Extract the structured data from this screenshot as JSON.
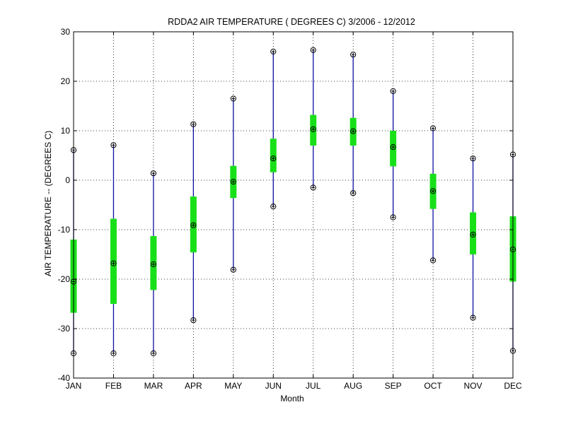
{
  "chart_data": {
    "type": "box",
    "title": "RDDA2  AIR TEMPERATURE ( DEGREES C) 3/2006 - 12/2012",
    "xlabel": "Month",
    "ylabel": "AIR TEMPERATURE -- (DEGREES C)",
    "ylim": [
      -40,
      30
    ],
    "yticks": [
      -40,
      -30,
      -20,
      -10,
      0,
      10,
      20,
      30
    ],
    "grid": true,
    "categories": [
      "JAN",
      "FEB",
      "MAR",
      "APR",
      "MAY",
      "JUN",
      "JUL",
      "AUG",
      "SEP",
      "OCT",
      "NOV",
      "DEC"
    ],
    "min": [
      -35.0,
      -35.0,
      -35.0,
      -28.3,
      -18.1,
      -5.3,
      -1.5,
      -2.6,
      -7.5,
      -16.2,
      -27.8,
      -34.5
    ],
    "q1": [
      -26.8,
      -25.0,
      -22.2,
      -14.6,
      -3.6,
      1.6,
      7.0,
      7.0,
      2.8,
      -5.8,
      -15.0,
      -20.5
    ],
    "median": [
      -20.5,
      -16.8,
      -17.0,
      -9.1,
      -0.3,
      4.4,
      10.3,
      9.9,
      6.7,
      -2.2,
      -11.0,
      -14.0
    ],
    "q3": [
      -12.0,
      -7.8,
      -11.3,
      -3.3,
      2.9,
      8.4,
      13.2,
      12.6,
      10.0,
      1.3,
      -6.5,
      -7.3
    ],
    "max": [
      6.1,
      7.1,
      1.4,
      11.3,
      16.5,
      26.0,
      26.3,
      25.4,
      18.0,
      10.5,
      4.4,
      5.2
    ],
    "colors": {
      "whisker": "#1010a0",
      "box": "#18e018",
      "marker": "#000000"
    }
  }
}
